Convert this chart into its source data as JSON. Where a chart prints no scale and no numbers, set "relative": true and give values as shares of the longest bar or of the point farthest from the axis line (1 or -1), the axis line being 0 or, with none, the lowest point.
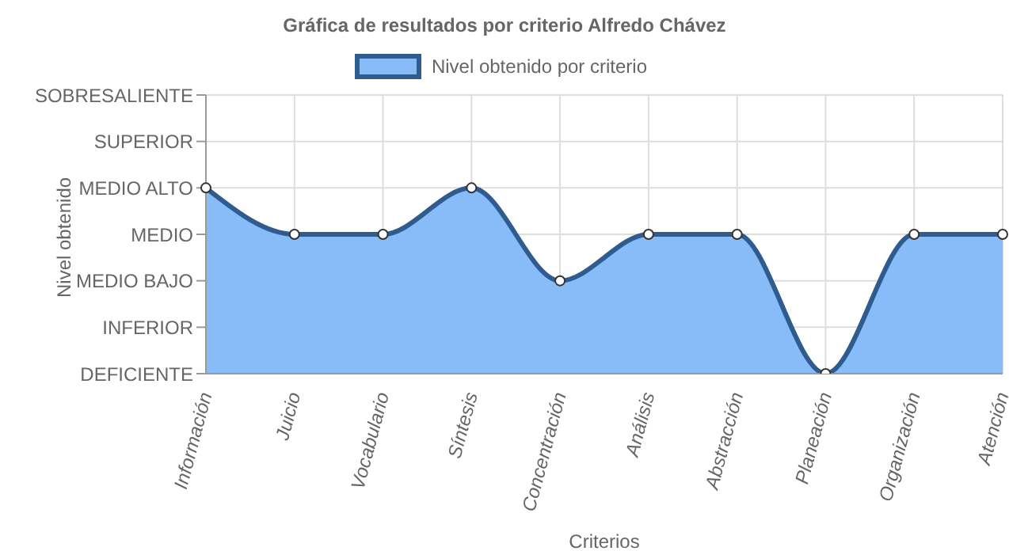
{
  "chart_data": {
    "type": "area",
    "title": "Gráfica de resultados por criterio Alfredo Chávez",
    "xlabel": "Criterios",
    "ylabel": "Nivel obtenido",
    "categories": [
      "Información",
      "Juicio",
      "Vocabulario",
      "Síntesis",
      "Concentración",
      "Análisis",
      "Abstracción",
      "Planeación",
      "Organización",
      "Atención"
    ],
    "y_categories": [
      "SOBRESALIENTE",
      "SUPERIOR",
      "MEDIO ALTO",
      "MEDIO",
      "MEDIO BAJO",
      "INFERIOR",
      "DEFICIENTE"
    ],
    "relative": true,
    "series": [
      {
        "name": "Nivel obtenido por criterio",
        "color": "#2f5b8f",
        "values": [
          1,
          0.75,
          0.75,
          1,
          0.5,
          0.75,
          0.75,
          0,
          0.75,
          0.75
        ]
      }
    ],
    "grid": true,
    "legend": "top",
    "marker": "circle",
    "line_style": "solid"
  }
}
